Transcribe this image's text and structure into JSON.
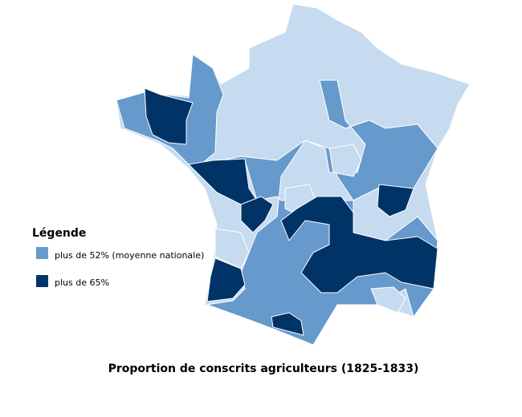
{
  "legend": {
    "title": "Légende",
    "items": [
      {
        "label": "plus de 52% (moyenne nationale)",
        "color": "#6699cc"
      },
      {
        "label": "plus de 65%",
        "color": "#003366"
      }
    ]
  },
  "caption": "Proportion de conscrits agriculteurs (1825-1833)"
}
